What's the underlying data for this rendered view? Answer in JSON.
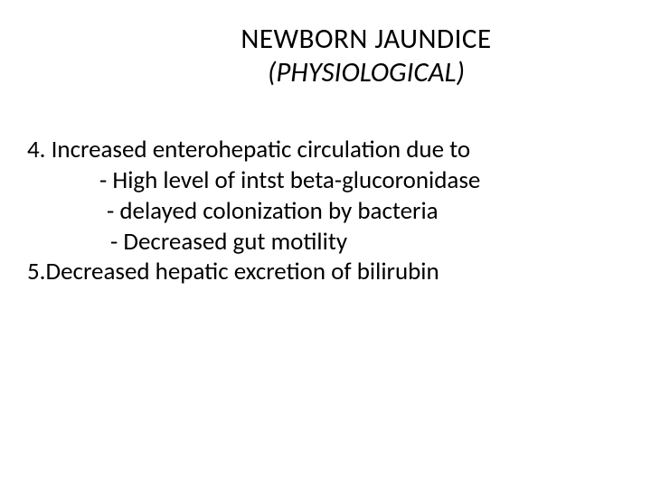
{
  "slide": {
    "title": {
      "line1": "NEWBORN JAUNDICE",
      "line2": "(PHYSIOLOGICAL)"
    },
    "body": {
      "point4": "4. Increased  enterohepatic circulation due to",
      "sub4a": "-  High level of intst beta-glucoronidase",
      "sub4b": "- delayed colonization by bacteria",
      "sub4c": "- Decreased gut motility",
      "point5": "5.Decreased hepatic excretion of bilirubin"
    },
    "styling": {
      "background_color": "#ffffff",
      "text_color": "#000000",
      "title_fontsize": 31,
      "body_fontsize": 27,
      "font_family": "Calibri"
    }
  }
}
